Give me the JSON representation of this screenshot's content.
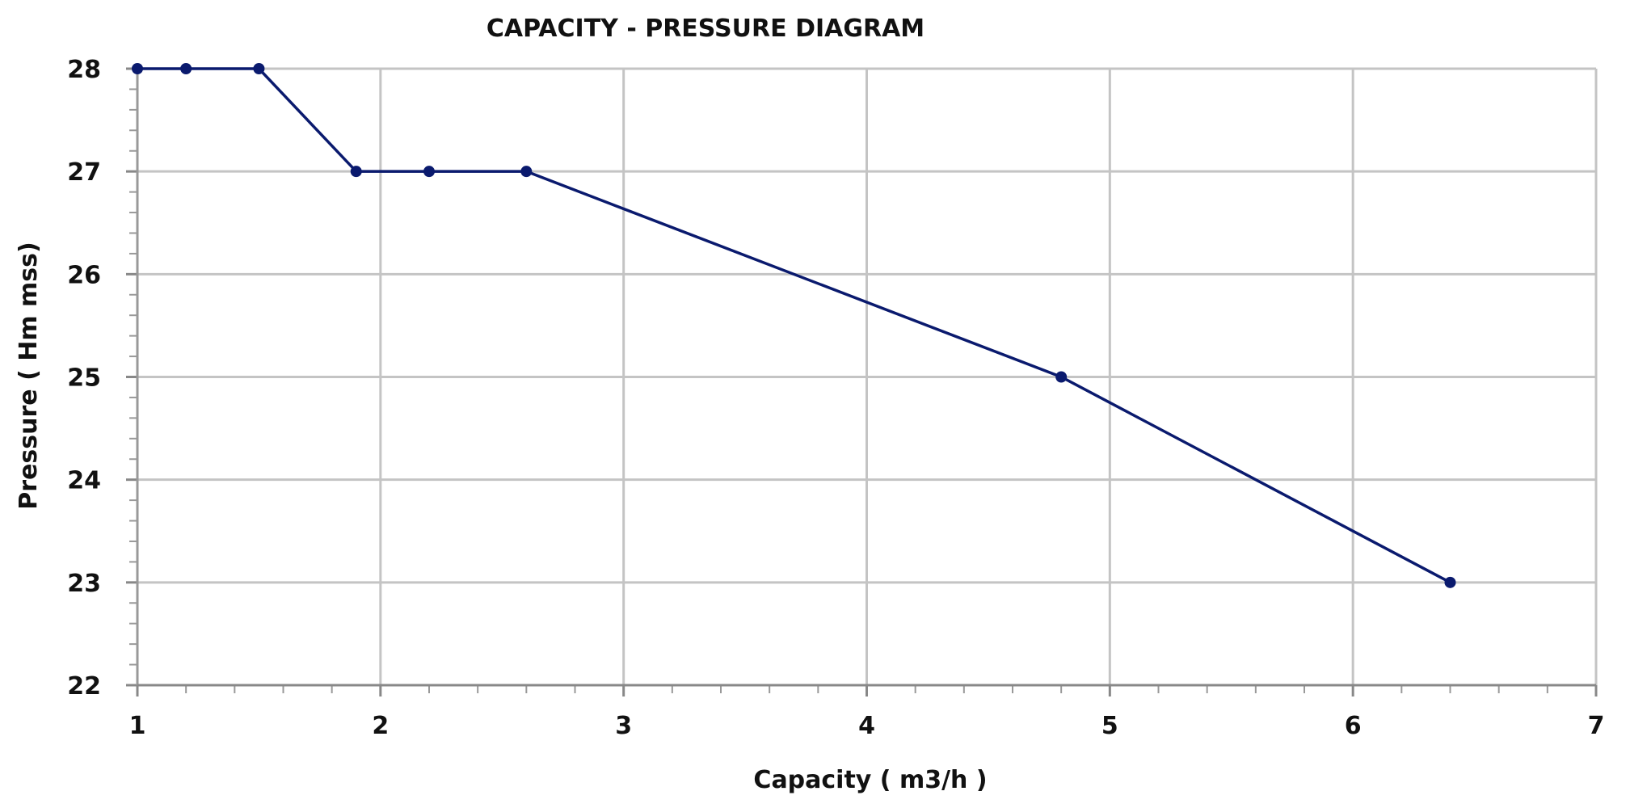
{
  "chart_data": {
    "type": "line",
    "title": "CAPACITY - PRESSURE DIAGRAM",
    "xlabel": "Capacity ( m3/h )",
    "ylabel": "Pressure ( Hm mss)",
    "xlim": [
      1,
      7
    ],
    "ylim": [
      22,
      28
    ],
    "xticks": [
      "1",
      "2",
      "3",
      "4",
      "5",
      "6",
      "7"
    ],
    "yticks": [
      "22",
      "23",
      "24",
      "25",
      "26",
      "27",
      "28"
    ],
    "grid": true,
    "series": [
      {
        "name": "Pressure",
        "color": "#0a1a6e",
        "x": [
          1,
          1.2,
          1.5,
          1.9,
          2.2,
          2.6,
          4.8,
          6.4
        ],
        "y": [
          28,
          28,
          28,
          27,
          27,
          27,
          25,
          23
        ]
      }
    ]
  }
}
